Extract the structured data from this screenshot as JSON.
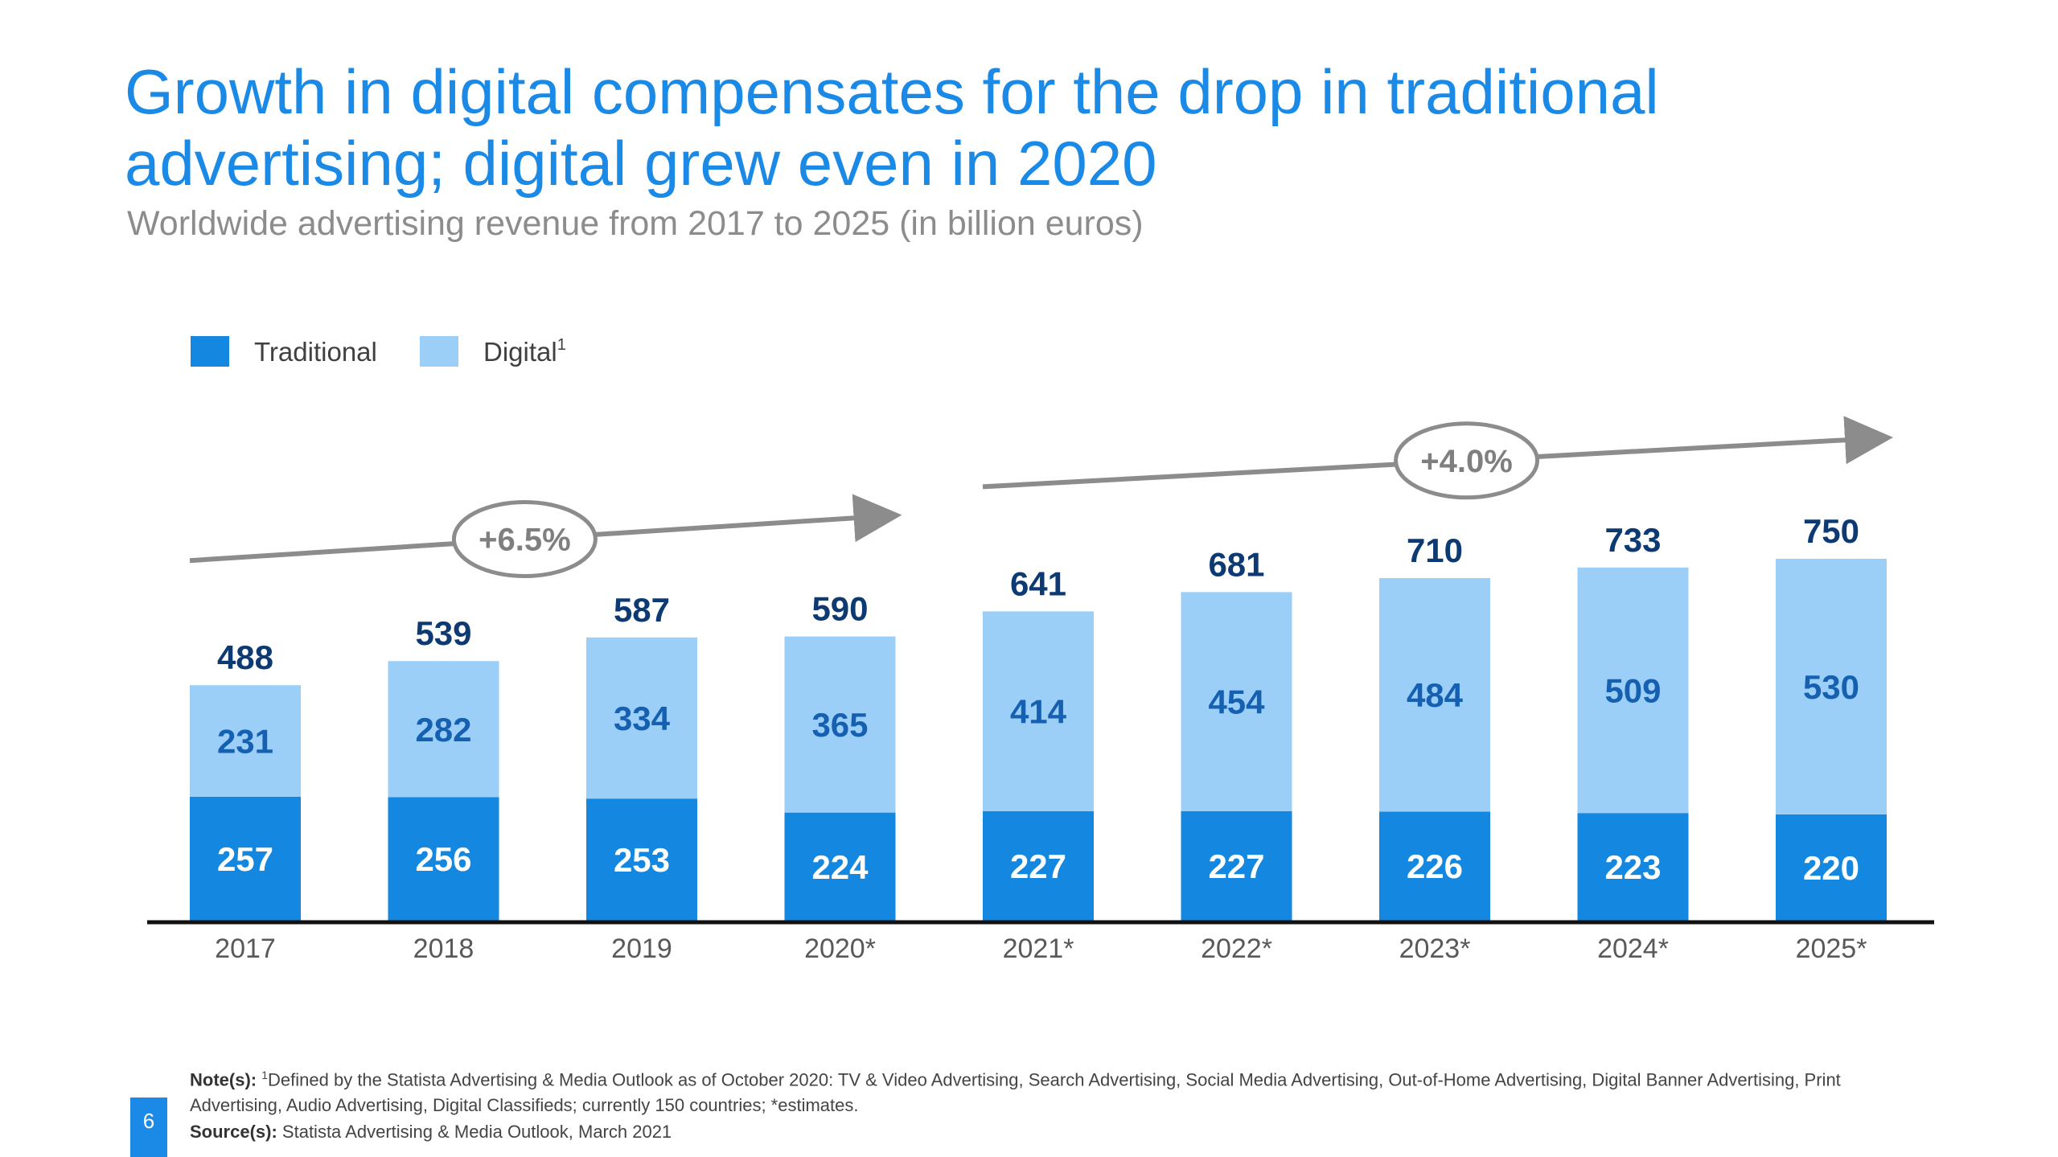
{
  "page": {
    "title": "Growth in digital compensates for the drop in traditional advertising; digital grew even in 2020",
    "subtitle": "Worldwide advertising revenue from 2017 to 2025 (in billion euros)",
    "page_number": "6"
  },
  "footer": {
    "notes_label": "Note(s):",
    "notes_sup": "1",
    "notes_text": "Defined by the Statista Advertising & Media Outlook as of October 2020: TV & Video Advertising, Search Advertising, Social Media Advertising, Out-of-Home Advertising, Digital Banner Advertising, Print Advertising, Audio Advertising, Digital Classifieds; currently 150 countries; *estimates.",
    "source_label": "Source(s):",
    "source_text": "Statista Advertising & Media Outlook, March 2021"
  },
  "colors": {
    "traditional": "#1487e0",
    "digital": "#9ccff8",
    "title": "#1a8ae6",
    "total_label": "#0e3a73",
    "digital_label": "#1560b0",
    "cagr_gray": "#8c8c8c"
  },
  "chart_data": {
    "type": "bar",
    "stacked": true,
    "title": "Worldwide advertising revenue from 2017 to 2025 (in billion euros)",
    "categories": [
      "2017",
      "2018",
      "2019",
      "2020*",
      "2021*",
      "2022*",
      "2023*",
      "2024*",
      "2025*"
    ],
    "series": [
      {
        "name": "Traditional",
        "values": [
          257,
          256,
          253,
          224,
          227,
          227,
          226,
          223,
          220
        ]
      },
      {
        "name": "Digital",
        "name_sup": "1",
        "values": [
          231,
          282,
          334,
          365,
          414,
          454,
          484,
          509,
          530
        ]
      }
    ],
    "totals": [
      488,
      539,
      587,
      590,
      641,
      681,
      710,
      733,
      750
    ],
    "legend": {
      "position": "top-left"
    },
    "ylim": [
      0,
      800
    ],
    "xlabel": "",
    "ylabel": "",
    "annotations": [
      {
        "label": "+6.5%",
        "from_category": "2017",
        "to_category": "2020*"
      },
      {
        "label": "+4.0%",
        "from_category": "2021*",
        "to_category": "2025*"
      }
    ]
  }
}
